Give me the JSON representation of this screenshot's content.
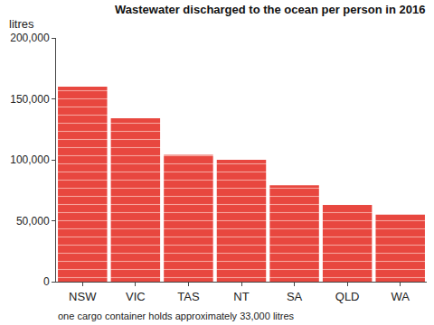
{
  "chart_data": {
    "type": "bar",
    "title": "Wastewater discharged to the ocean per person in 2016",
    "ylabel": "litres",
    "note": "one cargo container holds approximately 33,000 litres",
    "categories": [
      "NSW",
      "VIC",
      "TAS",
      "NT",
      "SA",
      "QLD",
      "WA"
    ],
    "values": [
      160000,
      134000,
      104000,
      100000,
      79000,
      63000,
      55000
    ],
    "color": "#e8473f",
    "ylim": [
      0,
      200000
    ],
    "yticks": [
      0,
      {
        "value": 50000,
        "label": "50,000"
      },
      {
        "value": 100000,
        "label": "100,000"
      },
      {
        "value": 150000,
        "label": "150,000"
      },
      {
        "value": 200000,
        "label": "200,000"
      }
    ],
    "grid": false
  }
}
